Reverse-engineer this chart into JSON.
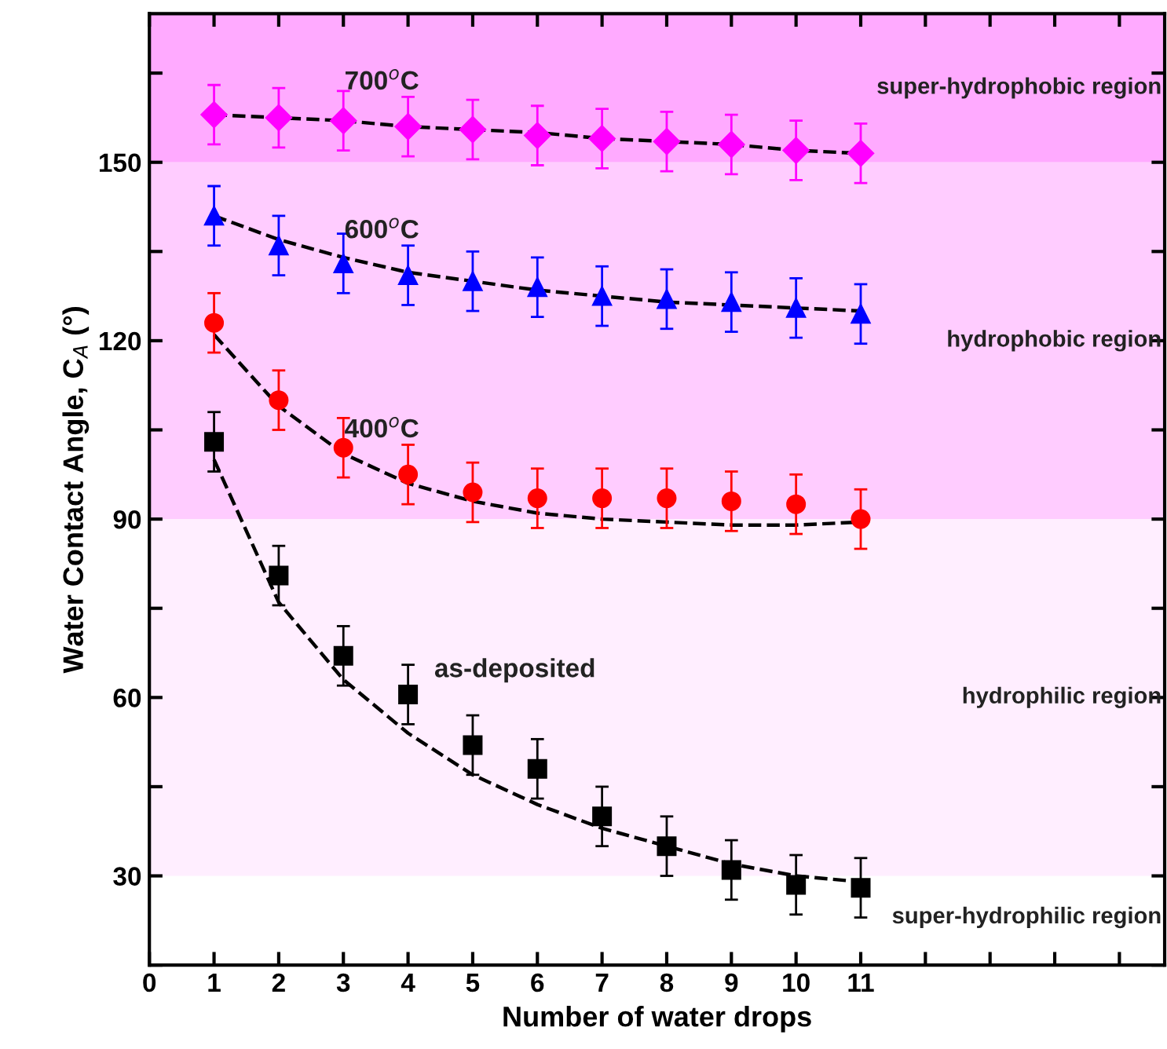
{
  "chart_data": {
    "type": "scatter",
    "xlabel": "Number of water drops",
    "ylabel": "Water Contact Angle, C$_{A}$ (°)",
    "xlim": [
      0,
      15.7
    ],
    "ylim": [
      15,
      175
    ],
    "xticks": [
      0,
      1,
      2,
      3,
      4,
      5,
      6,
      7,
      8,
      9,
      10,
      11,
      {
        "value": 12,
        "label": null
      },
      {
        "value": 13,
        "label": null
      },
      {
        "value": 14,
        "label": null
      },
      {
        "value": 15,
        "label": null
      }
    ],
    "yticks": [
      {
        "value": 15,
        "label": null
      },
      30,
      {
        "value": 45,
        "label": null
      },
      60,
      {
        "value": 75,
        "label": null
      },
      90,
      {
        "value": 105,
        "label": null
      },
      120,
      {
        "value": 135,
        "label": null
      },
      150,
      {
        "value": 165,
        "label": null
      }
    ],
    "grid": false,
    "legend": false,
    "bands": [
      {
        "axis": "y",
        "from": 150,
        "to": 175,
        "label": "super-hydrophobic region",
        "color": "#ffaaff"
      },
      {
        "axis": "y",
        "from": 90,
        "to": 150,
        "label": "hydrophobic region",
        "color": "#ffccff"
      },
      {
        "axis": "y",
        "from": 30,
        "to": 90,
        "label": "hydrophilic region",
        "color": "#ffeeff"
      }
    ],
    "series": [
      {
        "name": "700$^{o}$C",
        "color": "#ff00ff",
        "marker": "diamond",
        "x": [
          1,
          2,
          3,
          4,
          5,
          6,
          7,
          8,
          9,
          10,
          11
        ],
        "values": [
          158,
          157.5,
          157,
          156,
          155.5,
          154.5,
          154,
          153.5,
          153,
          152,
          151.5
        ],
        "errors": [
          5,
          5,
          5,
          5,
          5,
          5,
          5,
          5,
          5,
          5,
          5
        ]
      },
      {
        "name": "600$^{o}$C",
        "color": "#0000ff",
        "marker": "triangle",
        "x": [
          1,
          2,
          3,
          4,
          5,
          6,
          7,
          8,
          9,
          10,
          11
        ],
        "values": [
          141,
          136,
          133,
          131,
          130,
          129,
          127.5,
          127,
          126.5,
          125.5,
          124.5
        ],
        "errors": [
          5,
          5,
          5,
          5,
          5,
          5,
          5,
          5,
          5,
          5,
          5
        ]
      },
      {
        "name": "400$^{o}$C",
        "color": "#ff0000",
        "marker": "circle",
        "x": [
          1,
          2,
          3,
          4,
          5,
          6,
          7,
          8,
          9,
          10,
          11
        ],
        "values": [
          123,
          110,
          102,
          97.5,
          94.5,
          93.5,
          93.5,
          93.5,
          93,
          92.5,
          90
        ],
        "errors": [
          5,
          5,
          5,
          5,
          5,
          5,
          5,
          5,
          5,
          5,
          5
        ]
      },
      {
        "name": "as-deposited",
        "color": "#000000",
        "marker": "square",
        "x": [
          1,
          2,
          3,
          4,
          5,
          6,
          7,
          8,
          9,
          10,
          11
        ],
        "values": [
          103,
          80.5,
          67,
          60.5,
          52,
          48,
          40,
          35,
          31,
          28.5,
          28
        ],
        "errors": [
          5,
          5,
          5,
          5,
          5,
          5,
          5,
          5,
          5,
          5,
          5
        ]
      },
      {
        "type": "line",
        "color": "#000000",
        "line_style": "dashed",
        "x": [
          1,
          2,
          3,
          4,
          5,
          6,
          7,
          8,
          9,
          10,
          11
        ],
        "values": [
          158,
          157.5,
          157,
          156,
          155.5,
          155,
          154,
          153.5,
          153,
          152,
          151.5
        ]
      },
      {
        "type": "line",
        "color": "#000000",
        "line_style": "dashed",
        "x": [
          1,
          2,
          3,
          4,
          5,
          6,
          7,
          8,
          9,
          10,
          11
        ],
        "values": [
          141,
          137,
          134,
          131.5,
          130,
          128.5,
          127.5,
          126.5,
          126,
          125.5,
          125
        ]
      },
      {
        "type": "line",
        "color": "#000000",
        "line_style": "dashed",
        "x": [
          1,
          2,
          3,
          4,
          5,
          6,
          7,
          8,
          9,
          10,
          11
        ],
        "values": [
          121,
          109,
          101,
          96,
          93,
          91,
          90,
          89.5,
          89,
          89,
          89.5
        ]
      },
      {
        "type": "line",
        "color": "#000000",
        "line_style": "dashed",
        "x": [
          1,
          1.5,
          2,
          3,
          4,
          5,
          6,
          7,
          8,
          9,
          10,
          11
        ],
        "values": [
          100,
          88,
          76,
          63,
          54,
          47,
          42,
          38,
          35,
          32,
          30,
          29
        ]
      }
    ],
    "annotations": [
      "super-hydrophilic region"
    ]
  }
}
